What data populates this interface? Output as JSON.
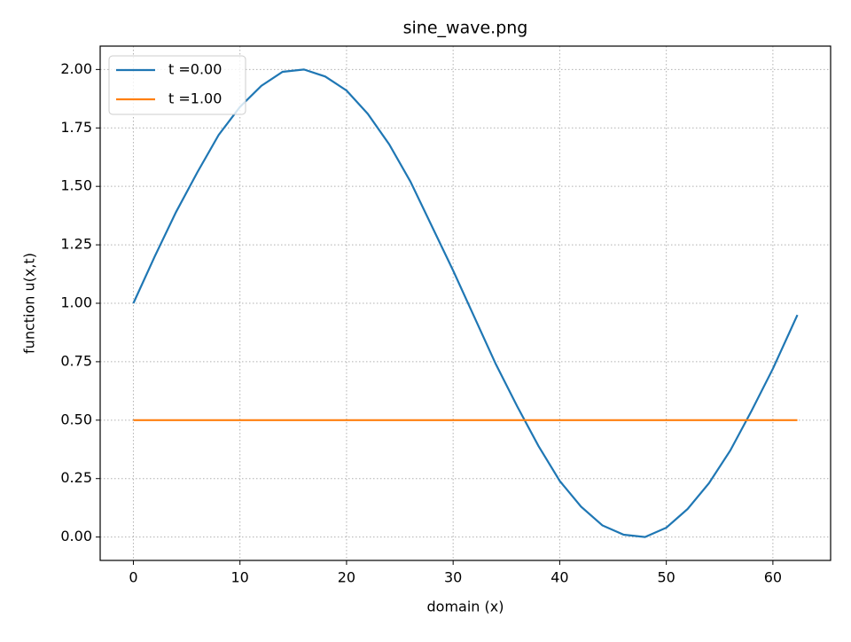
{
  "chart_data": {
    "type": "line",
    "title": "sine_wave.png",
    "xlabel": "domain (x)",
    "ylabel": "function u(x,t)",
    "x": [
      0,
      2,
      4,
      6,
      8,
      10,
      12,
      14,
      16,
      18,
      20,
      22,
      24,
      26,
      28,
      30,
      32,
      34,
      36,
      38,
      40,
      42,
      44,
      46,
      48,
      50,
      52,
      54,
      56,
      58,
      60,
      62,
      62.3
    ],
    "series": [
      {
        "name": "t =0.00",
        "color": "#1f77b4",
        "values": [
          1.0,
          1.2,
          1.39,
          1.56,
          1.72,
          1.84,
          1.93,
          1.99,
          2.0,
          1.97,
          1.91,
          1.81,
          1.68,
          1.52,
          1.33,
          1.14,
          0.94,
          0.74,
          0.56,
          0.39,
          0.24,
          0.13,
          0.05,
          0.01,
          0.0,
          0.04,
          0.12,
          0.23,
          0.37,
          0.54,
          0.72,
          0.92,
          0.95
        ]
      },
      {
        "name": "t =1.00",
        "color": "#ff7f0e",
        "values": [
          0.5,
          0.5,
          0.5,
          0.5,
          0.5,
          0.5,
          0.5,
          0.5,
          0.5,
          0.5,
          0.5,
          0.5,
          0.5,
          0.5,
          0.5,
          0.5,
          0.5,
          0.5,
          0.5,
          0.5,
          0.5,
          0.5,
          0.5,
          0.5,
          0.5,
          0.5,
          0.5,
          0.5,
          0.5,
          0.5,
          0.5,
          0.5,
          0.5
        ]
      }
    ],
    "xlim": [
      -3.115,
      65.415
    ],
    "ylim": [
      -0.1,
      2.1
    ],
    "xticks": [
      0,
      10,
      20,
      30,
      40,
      50,
      60
    ],
    "yticks": [
      {
        "value": 0,
        "label": "0.00"
      },
      {
        "value": 0.25,
        "label": "0.25"
      },
      {
        "value": 0.5,
        "label": "0.50"
      },
      {
        "value": 0.75,
        "label": "0.75"
      },
      {
        "value": 1,
        "label": "1.00"
      },
      {
        "value": 1.25,
        "label": "1.25"
      },
      {
        "value": 1.5,
        "label": "1.50"
      },
      {
        "value": 1.75,
        "label": "1.75"
      },
      {
        "value": 2,
        "label": "2.00"
      }
    ],
    "grid": true,
    "legend": "upper left"
  }
}
